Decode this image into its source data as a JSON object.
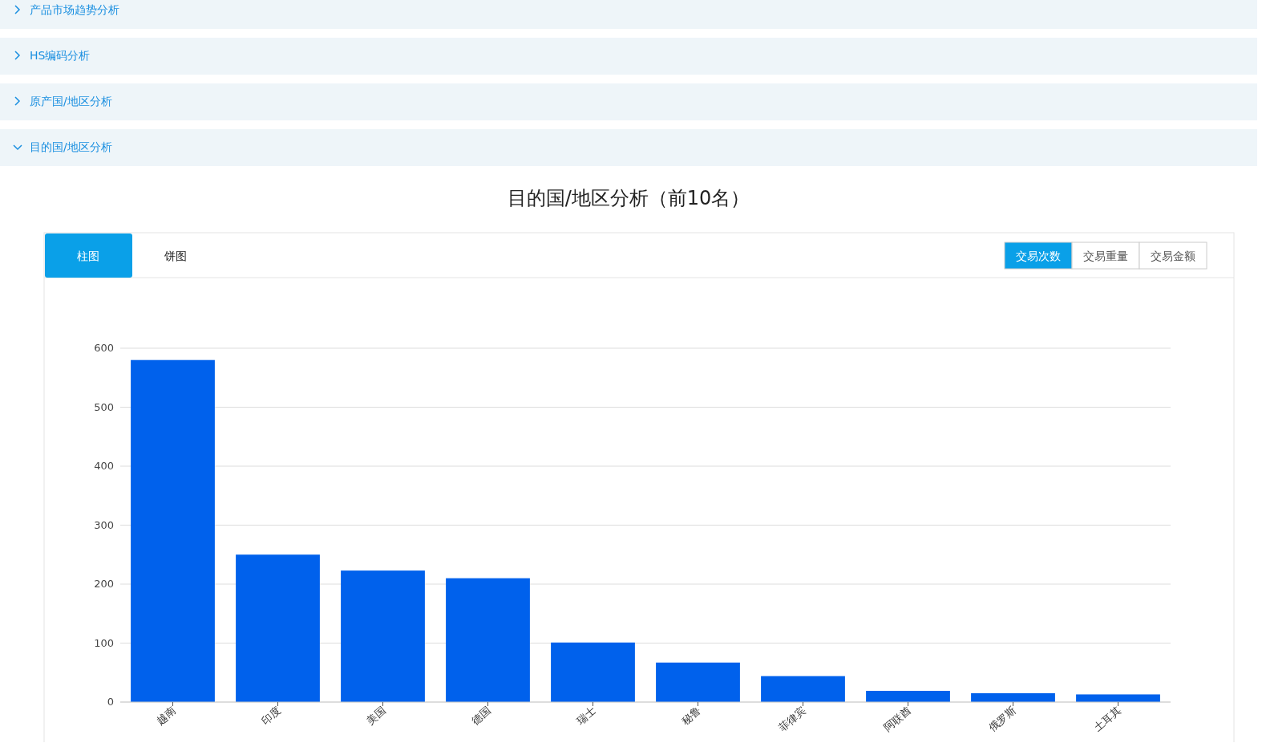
{
  "chart_data": {
    "type": "bar",
    "title": "目的国/地区分析（前10名）",
    "categories": [
      "越南",
      "印度",
      "美国",
      "德国",
      "瑞士",
      "秘鲁",
      "菲律宾",
      "阿联酋",
      "俄罗斯",
      "土耳其"
    ],
    "values": [
      580,
      250,
      223,
      210,
      101,
      67,
      44,
      19,
      15,
      13
    ],
    "color": "#0061ec",
    "ylim": [
      0,
      600
    ],
    "yticks": [
      0,
      100,
      200,
      300,
      400,
      500,
      600
    ],
    "grid": "y",
    "annotations": [
      "产品市场趋势分析",
      "HS编码分析",
      "原产国/地区分析",
      "目的国/地区分析",
      "柱图",
      "饼图",
      "交易次数",
      "交易重量",
      "交易金额"
    ]
  }
}
